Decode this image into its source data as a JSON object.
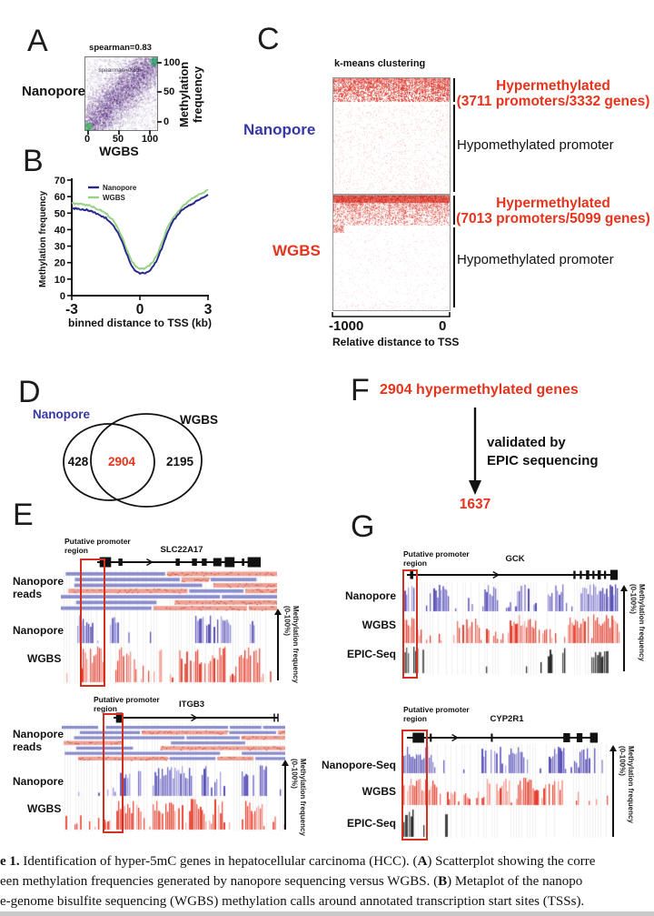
{
  "colors": {
    "navy": "#28288f",
    "blue_label": "#3737a8",
    "green": "#94d284",
    "red_accent": "#e8331c",
    "heat_red": "#d62817",
    "bar_blue": "#4f47b2",
    "bar_blue_light": "#928cd6",
    "bar_red": "#e53826",
    "bar_red_light": "#f2948a",
    "bar_black": "#151515",
    "reads_blue": "#8a8ccd",
    "reads_red": "#efa093"
  },
  "panels": {
    "A": {
      "label": "A",
      "title": "spearman=0.83",
      "inner_title": "spearman=0.83",
      "left_label": "Nanopore",
      "y_axis": "Methylation\nfrequency",
      "x_axis": "WGBS",
      "y_ticks": [
        "100",
        "50",
        "0"
      ],
      "x_ticks": [
        "0",
        "50",
        "100"
      ]
    },
    "B": {
      "label": "B",
      "y_axis": "Methylation frequency",
      "x_axis": "binned distance to TSS (kb)",
      "y_ticks": [
        "70",
        "60",
        "50",
        "40",
        "30",
        "20",
        "10",
        "0"
      ],
      "x_ticks": [
        "-3",
        "0",
        "3"
      ]
    },
    "C": {
      "label": "C",
      "title": "k-means clustering",
      "row1_label": "Nanopore",
      "row2_label": "WGBS",
      "hyper1_title": "Hypermethylated",
      "hyper1_sub": "(3711 promoters/3332 genes)",
      "hyper2_title": "Hypermethylated",
      "hyper2_sub": "(7013 promoters/5099 genes)",
      "hypo_label": "Hypomethylated promoter",
      "x_tick_left": "-1000",
      "x_tick_right": "0",
      "x_axis": "Relative distance to TSS"
    },
    "D": {
      "label": "D",
      "set1": "Nanopore",
      "set2": "WGBS",
      "value1": "428",
      "overlap": "2904",
      "value2": "2195"
    },
    "F": {
      "label": "F",
      "title": "2904 hypermethylated genes",
      "step": "validated by\nEPIC sequencing",
      "result": "1637"
    },
    "E": {
      "label": "E",
      "browsers": [
        {
          "gene": "SLC22A17",
          "promoter_label": "Putative promoter\nregion",
          "axis_label": "Methylation frequency\n(0-100%)",
          "model": {
            "exons": [
              [
                0.015,
                0.085,
                11
              ],
              [
                0.13,
                0.155,
                8
              ],
              [
                0.48,
                0.505,
                8
              ],
              [
                0.58,
                0.61,
                8
              ],
              [
                0.64,
                0.67,
                8
              ],
              [
                0.71,
                0.76,
                9
              ],
              [
                0.78,
                0.84,
                11
              ],
              [
                0.885,
                0.9,
                8
              ],
              [
                0.92,
                1,
                11
              ]
            ],
            "arrow": 0.33,
            "end_bars": false
          },
          "tracks": [
            {
              "label": "Nanopore\nreads",
              "type": "reads",
              "rows": 7,
              "seed": 11
            },
            {
              "label": "Nanopore",
              "type": "bars",
              "color": "blue",
              "seed": 21,
              "base": 0.05,
              "clusters": [
                [
                  0.09,
                  0.02,
                  0.9
                ],
                [
                  0.13,
                  0.015,
                  0.9
                ],
                [
                  0.235,
                  0.03,
                  0.85
                ],
                [
                  0.64,
                  0.02,
                  0.9
                ],
                [
                  0.7,
                  0.03,
                  0.9
                ],
                [
                  0.76,
                  0.025,
                  0.9
                ],
                [
                  0.88,
                  0.012,
                  0.7
                ]
              ]
            },
            {
              "label": "WGBS",
              "type": "bars",
              "color": "red",
              "seed": 31,
              "base": 0.3,
              "clusters": [
                [
                  0.15,
                  0.05,
                  0.95
                ],
                [
                  0.3,
                  0.04,
                  0.7
                ],
                [
                  0.45,
                  0.02,
                  0.6
                ],
                [
                  0.57,
                  0.03,
                  0.8
                ],
                [
                  0.64,
                  0.03,
                  0.8
                ],
                [
                  0.72,
                  0.04,
                  0.85
                ],
                [
                  0.87,
                  0.05,
                  0.8
                ]
              ]
            }
          ]
        },
        {
          "gene": "ITGB3",
          "promoter_label": "Putative promoter\nregion",
          "axis_label": "Methylation frequency\n(0-100%)",
          "model": {
            "exons": [
              [
                0.015,
                0.055,
                11
              ]
            ],
            "arrow": 0.5,
            "end_bars": true
          },
          "tracks": [
            {
              "label": "Nanopore\nreads",
              "type": "reads",
              "rows": 7,
              "seed": 12
            },
            {
              "label": "Nanopore",
              "type": "bars",
              "color": "blue",
              "seed": 22,
              "base": 0.06,
              "clusters": [
                [
                  0.28,
                  0.025,
                  0.95
                ],
                [
                  0.34,
                  0.012,
                  0.8
                ],
                [
                  0.47,
                  0.06,
                  0.95
                ],
                [
                  0.56,
                  0.03,
                  0.9
                ],
                [
                  0.64,
                  0.02,
                  0.8
                ],
                [
                  0.7,
                  0.012,
                  0.7
                ],
                [
                  0.83,
                  0.03,
                  0.85
                ],
                [
                  0.9,
                  0.015,
                  0.7
                ]
              ]
            },
            {
              "label": "WGBS",
              "type": "bars",
              "color": "red",
              "seed": 32,
              "base": 0.28,
              "clusters": [
                [
                  0.27,
                  0.04,
                  0.95
                ],
                [
                  0.33,
                  0.02,
                  0.8
                ],
                [
                  0.47,
                  0.07,
                  0.95
                ],
                [
                  0.6,
                  0.04,
                  0.85
                ],
                [
                  0.7,
                  0.02,
                  0.6
                ],
                [
                  0.86,
                  0.04,
                  0.9
                ]
              ]
            }
          ]
        }
      ]
    },
    "G": {
      "label": "G",
      "browsers": [
        {
          "gene": "GCK",
          "promoter_label": "Putative promoter\nregion",
          "axis_label": "Methylation frequency\n(0-100%)",
          "model": {
            "exons": [
              [
                0.015,
                0.03,
                9
              ],
              [
                0.79,
                0.8,
                9
              ],
              [
                0.82,
                0.83,
                9
              ],
              [
                0.85,
                0.865,
                10
              ],
              [
                0.88,
                0.89,
                9
              ],
              [
                0.905,
                0.92,
                10
              ],
              [
                0.935,
                0.945,
                9
              ],
              [
                0.965,
                1,
                11
              ]
            ],
            "arrow": 0.43,
            "end_bars": false
          },
          "tracks": [
            {
              "label": "Nanopore",
              "type": "bars",
              "color": "blue",
              "seed": 23,
              "base": 0.22,
              "clusters": [
                [
                  0.03,
                  0.025,
                  0.95
                ],
                [
                  0.17,
                  0.05,
                  0.8
                ],
                [
                  0.4,
                  0.03,
                  0.9
                ],
                [
                  0.55,
                  0.03,
                  0.8
                ],
                [
                  0.7,
                  0.04,
                  0.85
                ],
                [
                  0.9,
                  0.09,
                  0.95
                ]
              ]
            },
            {
              "label": "WGBS",
              "type": "bars",
              "color": "red",
              "seed": 33,
              "base": 0.36,
              "clusters": [
                [
                  0.03,
                  0.025,
                  0.95
                ],
                [
                  0.3,
                  0.05,
                  0.85
                ],
                [
                  0.55,
                  0.06,
                  0.9
                ],
                [
                  0.8,
                  0.05,
                  0.9
                ],
                [
                  0.93,
                  0.06,
                  0.95
                ]
              ]
            },
            {
              "label": "EPIC-Seq",
              "type": "bars",
              "color": "black",
              "seed": 43,
              "base": 0.05,
              "clusters": [
                [
                  0.02,
                  0.02,
                  0.9
                ],
                [
                  0.055,
                  0.012,
                  0.8
                ],
                [
                  0.09,
                  0.008,
                  0.7
                ],
                [
                  0.68,
                  0.02,
                  0.6
                ],
                [
                  0.73,
                  0.012,
                  0.5
                ],
                [
                  0.9,
                  0.04,
                  0.95
                ]
              ]
            }
          ]
        },
        {
          "gene": "CYP2R1",
          "promoter_label": "Putative promoter\nregion",
          "axis_label": "Methylation frequency\n(0-100%)",
          "model": {
            "exons": [
              [
                0.03,
                0.09,
                11
              ],
              [
                0.12,
                0.13,
                9
              ],
              [
                0.44,
                0.45,
                9
              ],
              [
                0.82,
                0.855,
                10
              ],
              [
                0.89,
                0.92,
                10
              ],
              [
                0.96,
                1,
                11
              ]
            ],
            "arrow": 0.26,
            "end_bars": false
          },
          "tracks": [
            {
              "label": "Nanopore-Seq",
              "type": "bars",
              "color": "blue",
              "seed": 24,
              "base": 0.16,
              "clusters": [
                [
                  0.04,
                  0.05,
                  0.97
                ],
                [
                  0.12,
                  0.02,
                  0.9
                ],
                [
                  0.42,
                  0.05,
                  0.7
                ],
                [
                  0.55,
                  0.05,
                  0.8
                ],
                [
                  0.73,
                  0.04,
                  0.9
                ],
                [
                  0.88,
                  0.04,
                  0.6
                ]
              ]
            },
            {
              "label": "WGBS",
              "type": "bars",
              "color": "red",
              "seed": 34,
              "base": 0.28,
              "clusters": [
                [
                  0.05,
                  0.06,
                  0.97
                ],
                [
                  0.14,
                  0.03,
                  0.85
                ],
                [
                  0.45,
                  0.06,
                  0.8
                ],
                [
                  0.6,
                  0.05,
                  0.85
                ],
                [
                  0.72,
                  0.05,
                  0.85
                ]
              ]
            },
            {
              "label": "EPIC-Seq",
              "type": "bars",
              "color": "black",
              "seed": 44,
              "base": 0.02,
              "clusters": [
                [
                  0.03,
                  0.03,
                  0.97
                ],
                [
                  0.21,
                  0.007,
                  0.8
                ],
                [
                  0.34,
                  0.007,
                  0.6
                ]
              ]
            }
          ]
        }
      ]
    }
  },
  "chart_data": [
    {
      "type": "scatter",
      "panel": "A",
      "title": "spearman=0.83",
      "xlabel": "WGBS",
      "ylabel": "Methylation frequency",
      "xlim": [
        0,
        100
      ],
      "ylim": [
        0,
        100
      ],
      "x_ticks": [
        0,
        50,
        100
      ],
      "y_ticks": [
        0,
        50,
        100
      ],
      "note": "density scatterplot; highest density along diagonal and at (0,0) and (100,100)"
    },
    {
      "type": "line",
      "panel": "B",
      "xlabel": "binned distance to TSS (kb)",
      "ylabel": "Methylation frequency",
      "xlim": [
        -3,
        3
      ],
      "ylim": [
        0,
        70
      ],
      "legend_position": "top-left",
      "x": [
        -3,
        -2.6,
        -2.2,
        -1.8,
        -1.5,
        -1.2,
        -1.0,
        -0.8,
        -0.6,
        -0.4,
        -0.2,
        0,
        0.2,
        0.4,
        0.6,
        0.8,
        1.0,
        1.2,
        1.5,
        1.8,
        2.2,
        2.6,
        3
      ],
      "series": [
        {
          "name": "Nanopore",
          "color": "#28288f",
          "values": [
            53,
            52.5,
            51.5,
            49,
            47,
            43,
            39,
            33,
            26,
            19,
            14.5,
            13.5,
            13.5,
            15,
            18,
            23,
            30,
            38,
            46,
            51,
            55,
            58,
            61
          ]
        },
        {
          "name": "WGBS",
          "color": "#94d284",
          "values": [
            56,
            55.5,
            54.5,
            52,
            50,
            46,
            42,
            36,
            29,
            22,
            18,
            16.5,
            16.5,
            18,
            21,
            26,
            33,
            41,
            48,
            53,
            58,
            61,
            64
          ]
        }
      ]
    },
    {
      "type": "heatmap",
      "panel": "C",
      "title": "k-means clustering",
      "xlabel": "Relative distance to TSS",
      "x_ticks": [
        "-1000",
        "0"
      ],
      "rows": [
        {
          "name": "Nanopore",
          "clusters": [
            {
              "label": "Hypermethylated (3711 promoters/3332 genes)",
              "fraction": 0.21
            },
            {
              "label": "Hypomethylated promoter",
              "fraction": 0.79
            }
          ]
        },
        {
          "name": "WGBS",
          "clusters": [
            {
              "label": "Hypermethylated (7013 promoters/5099 genes)",
              "fraction": 0.26
            },
            {
              "label": "Hypomethylated promoter",
              "fraction": 0.74
            }
          ]
        }
      ]
    },
    {
      "type": "venn",
      "panel": "D",
      "sets": [
        {
          "name": "Nanopore",
          "unique": 428
        },
        {
          "name": "WGBS",
          "unique": 2195
        }
      ],
      "overlap": 2904
    },
    {
      "type": "flow",
      "panel": "F",
      "start": "2904 hypermethylated genes",
      "step": "validated by EPIC sequencing",
      "end": "1637"
    }
  ],
  "caption": {
    "lines": [
      [
        {
          "t": "e 1.",
          "b": true
        },
        {
          "t": " Identification of hyper-5mC genes in hepatocellular carcinoma (HCC). (",
          "b": false
        },
        {
          "t": "A",
          "b": true
        },
        {
          "t": ") Scatterplot showing the corre",
          "b": false
        }
      ],
      [
        {
          "t": "een methylation frequencies generated by nanopore sequencing versus WGBS. (",
          "b": false
        },
        {
          "t": "B",
          "b": true
        },
        {
          "t": ") Metaplot of the nanopo",
          "b": false
        }
      ],
      [
        {
          "t": "e-genome bisulfite sequencing (WGBS) methylation calls around annotated transcription start sites (TSSs).",
          "b": false
        }
      ]
    ]
  }
}
